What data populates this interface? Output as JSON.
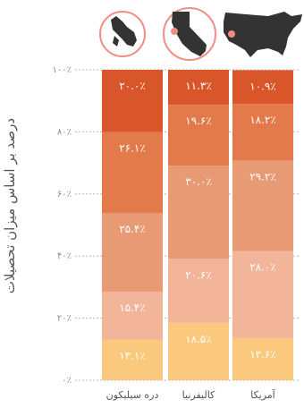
{
  "chart_data": {
    "type": "bar",
    "stacked": true,
    "title": "",
    "xlabel": "",
    "ylabel": "درصد بر اساس میزان تحصیلات",
    "ylim": [
      0,
      100
    ],
    "y_ticks": [
      0,
      20,
      40,
      60,
      80,
      100
    ],
    "y_tick_labels": [
      "۰٪",
      "۲۰٪",
      "۴۰٪",
      "۶۰٪",
      "۸۰٪",
      "۱۰۰٪"
    ],
    "grid": "horizontal-dashed",
    "categories": [
      "دره سیلیکون",
      "کالیفرنیا",
      "آمریکا"
    ],
    "category_icons": [
      "silicon-valley-map-icon",
      "california-map-icon",
      "usa-map-icon"
    ],
    "series": [
      {
        "values": [
          13.1,
          18.5,
          13.6
        ],
        "labels": [
          "۱۳.۱٪",
          "۱۸.۵٪",
          "۱۳.۶٪"
        ],
        "color": "#FBC97E"
      },
      {
        "values": [
          15.4,
          20.6,
          28.0
        ],
        "labels": [
          "۱۵.۴٪",
          "۲۰.۶٪",
          "۲۸.۰٪"
        ],
        "color": "#F2B59A"
      },
      {
        "values": [
          25.4,
          30.0,
          29.2
        ],
        "labels": [
          "۲۵.۴٪",
          "۳۰.۰٪",
          "۲۹.۲٪"
        ],
        "color": "#E89A74"
      },
      {
        "values": [
          26.1,
          19.6,
          18.2
        ],
        "labels": [
          "۲۶.۱٪",
          "۱۹.۶٪",
          "۱۸.۲٪"
        ],
        "color": "#E27A4B"
      },
      {
        "values": [
          20.0,
          11.3,
          10.9
        ],
        "labels": [
          "۲۰.۰٪",
          "۱۱.۳٪",
          "۱۰.۹٪"
        ],
        "color": "#D9562A"
      }
    ],
    "colors": {
      "icon_ring": "#F08E86",
      "icon_fill": "#333333",
      "icon_dot": "#F08E86"
    }
  }
}
